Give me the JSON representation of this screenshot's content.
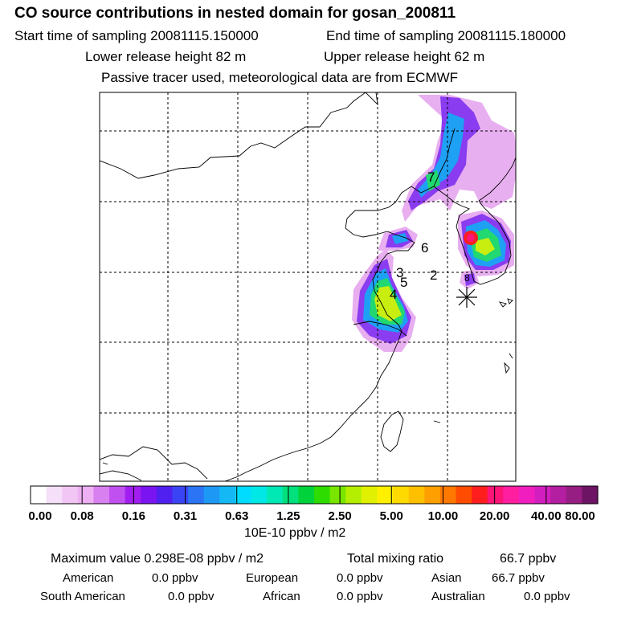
{
  "header": {
    "title": "CO  source contributions in nested domain for gosan_200811",
    "start_time": "Start time of sampling 20081115.150000",
    "end_time": "End time of sampling 20081115.180000",
    "lower_release": "Lower release height   82 m",
    "upper_release": "Upper release height   62 m",
    "tracer_note": "Passive tracer used, meteorological data are from ECMWF"
  },
  "map": {
    "markers": [
      "7",
      "6",
      "3",
      "2",
      "5",
      "4",
      "8"
    ],
    "station_symbol": "asterisk"
  },
  "color_scale": {
    "labels": [
      "0.00",
      "0.08",
      "0.16",
      "0.31",
      "0.63",
      "1.25",
      "2.50",
      "5.00",
      "10.00",
      "20.00",
      "40.00",
      "80.00"
    ],
    "units": "10E-10 ppbv / m2",
    "colors": [
      "#ffffff",
      "#f6dff8",
      "#f2c6f4",
      "#eeb0f2",
      "#d880f0",
      "#c050f0",
      "#a21ef0",
      "#7a14f0",
      "#5020f0",
      "#3b44f5",
      "#2a74f5",
      "#1e98f5",
      "#14b8f5",
      "#00dcff",
      "#00e8e6",
      "#00e8b4",
      "#00e07c",
      "#00d23c",
      "#2edc00",
      "#78e600",
      "#b4ee00",
      "#e0f000",
      "#fff000",
      "#ffda00",
      "#ffc000",
      "#ffa000",
      "#ff7800",
      "#ff4c00",
      "#ff1e1e",
      "#ff1478",
      "#ff1ea0",
      "#f01ebe",
      "#d21ebe",
      "#b41ea0",
      "#961e82",
      "#6e1464"
    ]
  },
  "stats": {
    "max_label": "Maximum value  0.298E-08 ppbv / m2",
    "total_label": "Total mixing ratio",
    "total_value": "66.7 ppbv",
    "american_label": "American",
    "american_value": "0.0 ppbv",
    "european_label": "European",
    "european_value": "0.0 ppbv",
    "asian_label": "Asian",
    "asian_value": "66.7 ppbv",
    "south_american_label": "South American",
    "south_american_value": "0.0 ppbv",
    "african_label": "African",
    "african_value": "0.0 ppbv",
    "australian_label": "Australian",
    "australian_value": "0.0 ppbv"
  }
}
